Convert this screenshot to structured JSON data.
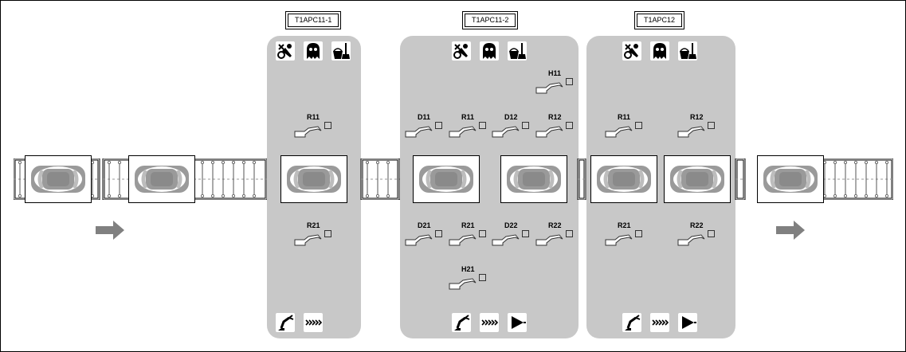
{
  "cells": [
    {
      "id": "c1",
      "label": "T1APC11-1",
      "robots": [
        {
          "name": "R11"
        },
        {
          "name": "R21"
        }
      ]
    },
    {
      "id": "c2",
      "label": "T1APC11-2",
      "robots": [
        {
          "name": "H11"
        },
        {
          "name": "D11"
        },
        {
          "name": "R11"
        },
        {
          "name": "D12"
        },
        {
          "name": "R12"
        },
        {
          "name": "D21"
        },
        {
          "name": "R21"
        },
        {
          "name": "D22"
        },
        {
          "name": "R22"
        },
        {
          "name": "H21"
        }
      ]
    },
    {
      "id": "c3",
      "label": "T1APC12",
      "robots": [
        {
          "name": "R11"
        },
        {
          "name": "R12"
        },
        {
          "name": "R21"
        },
        {
          "name": "R22"
        }
      ]
    }
  ],
  "icons": {
    "maintenance": "tools-icon",
    "ghost": "ghost-icon",
    "cleaning": "bucket-broom-icon",
    "robot_arm": "robot-arm-icon",
    "conveyor": "conveyor-chevrons-icon",
    "play": "play-icon"
  },
  "colors": {
    "panel": "#c8c8c8",
    "car": "#9a9a9a",
    "arrow": "#808080"
  },
  "flow_direction": "left-to-right"
}
